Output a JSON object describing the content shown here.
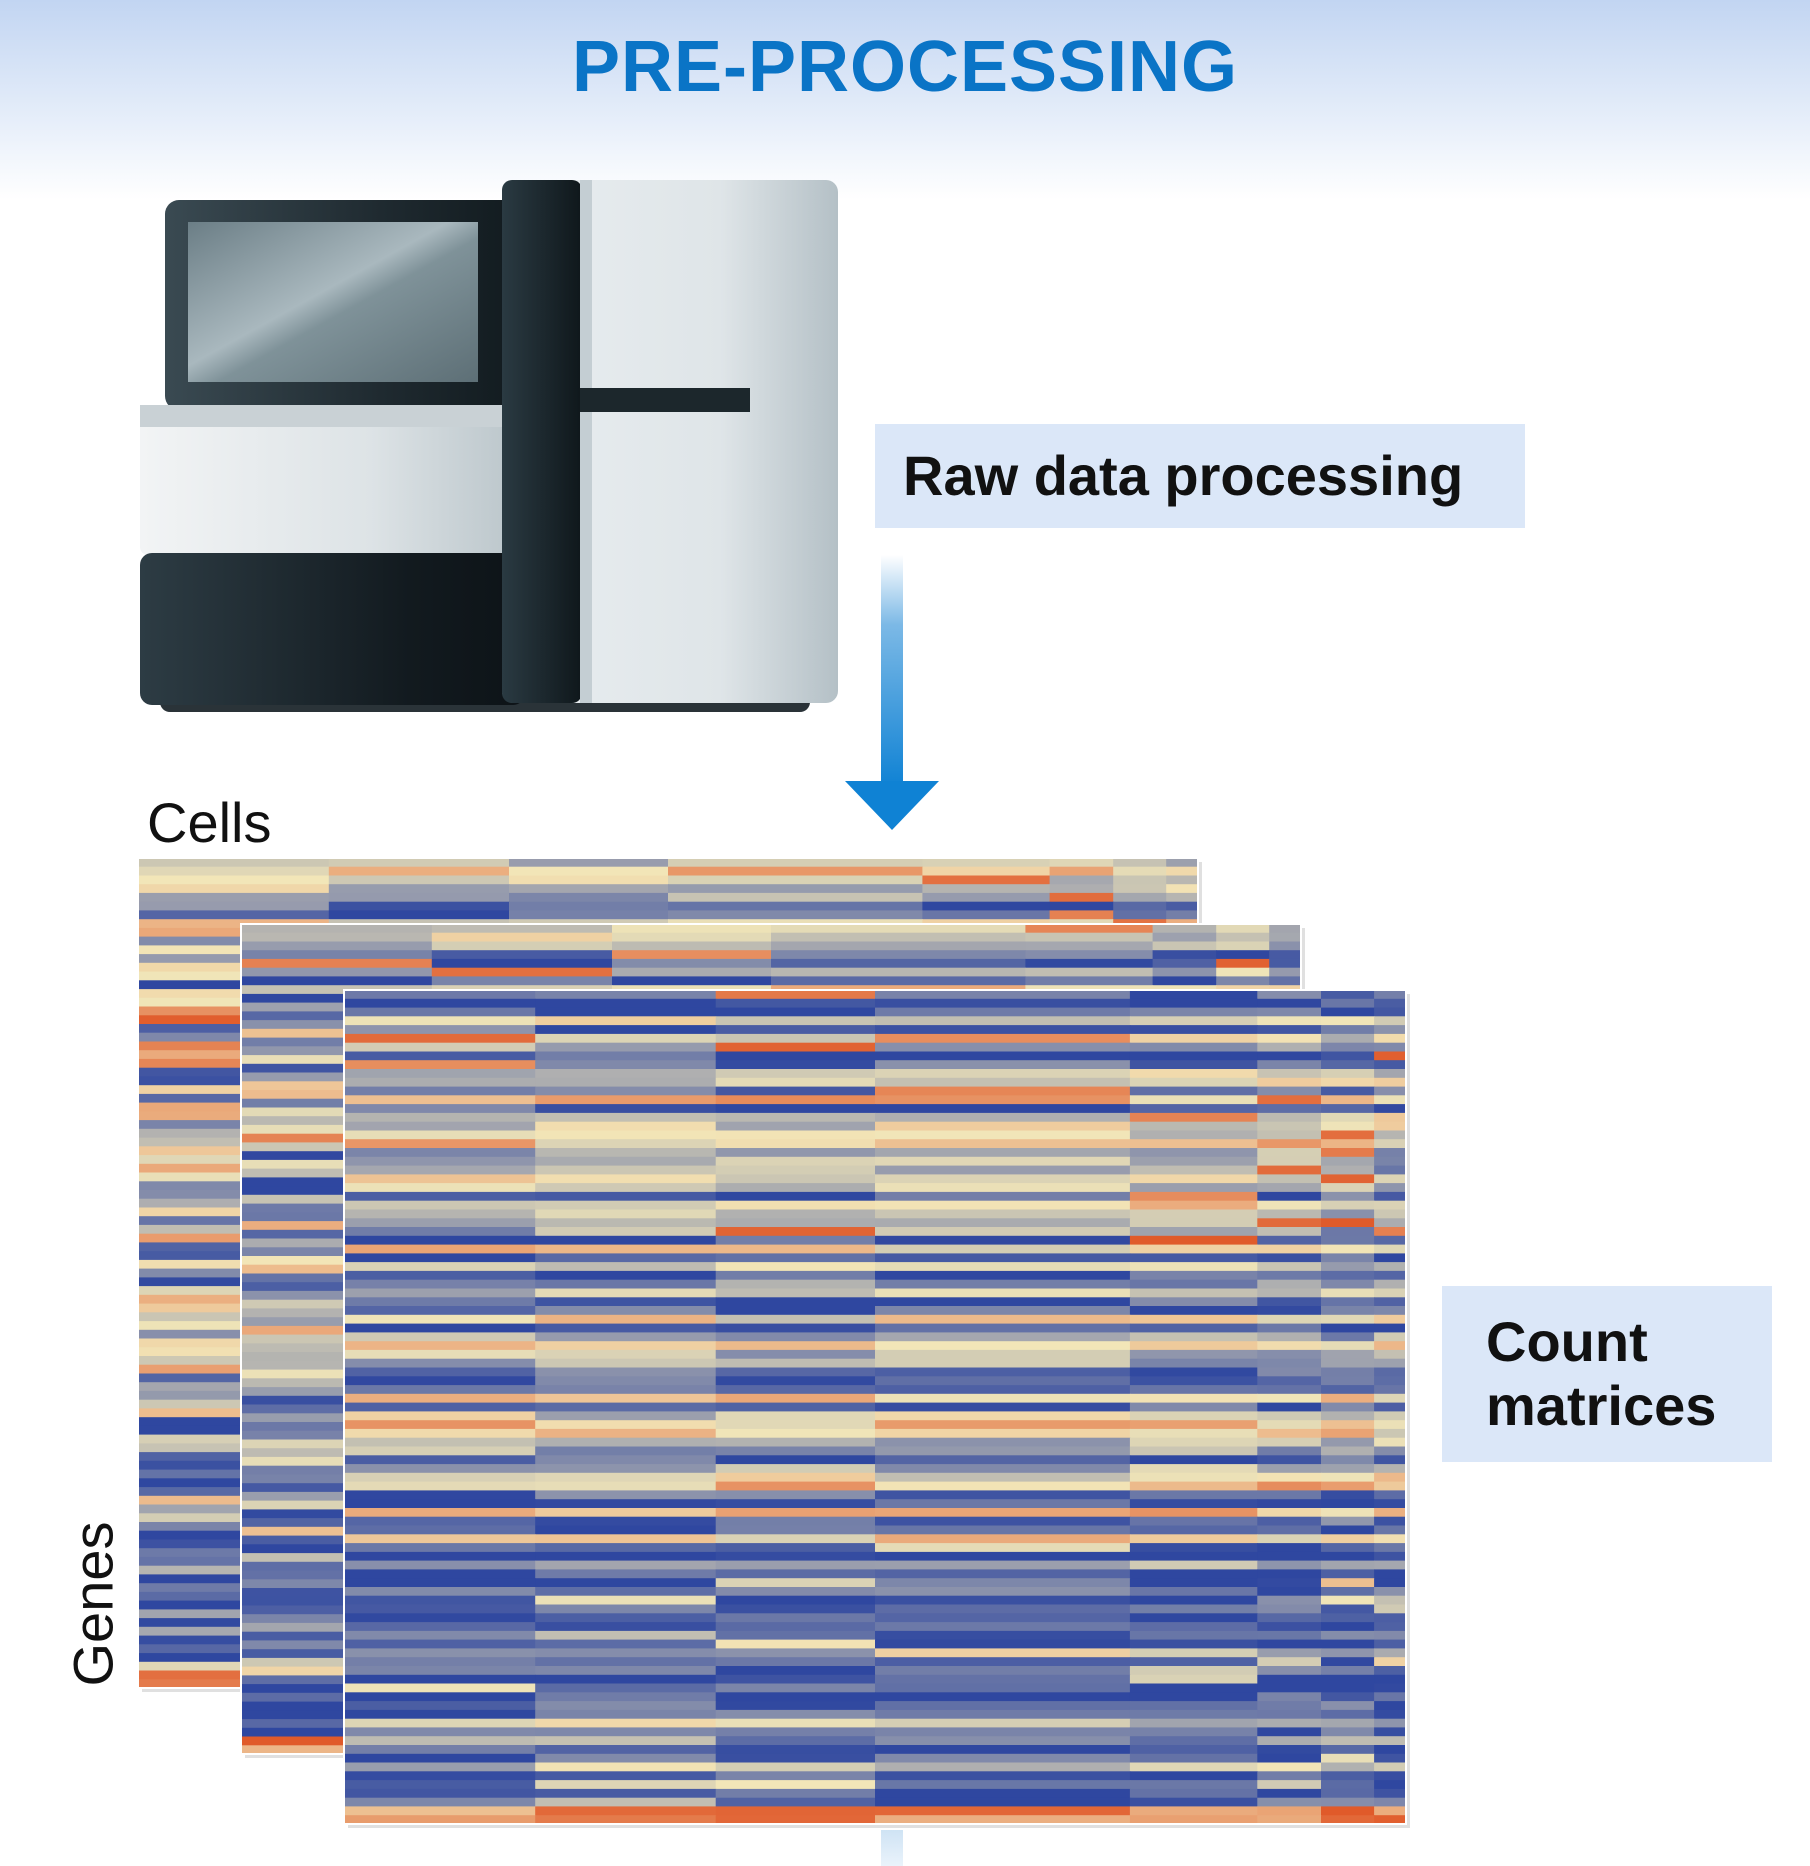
{
  "header": {
    "title": "PRE-PROCESSING"
  },
  "steps": {
    "raw_data_processing": "Raw data processing",
    "count_matrices": [
      "Count",
      "matrices"
    ]
  },
  "matrix_axes": {
    "columns_label": "Cells",
    "rows_label": "Genes"
  },
  "colors": {
    "title": "#0a74c6",
    "label_box": "#dbe7f8",
    "arrow": "#0f82d4",
    "heatmap_low": "#2f47a0",
    "heatmap_mid": "#f2e6b8",
    "heatmap_high": "#e05a2a"
  },
  "icons": {
    "instrument": "sequencer-machine-icon",
    "flow": "down-arrow-icon"
  }
}
